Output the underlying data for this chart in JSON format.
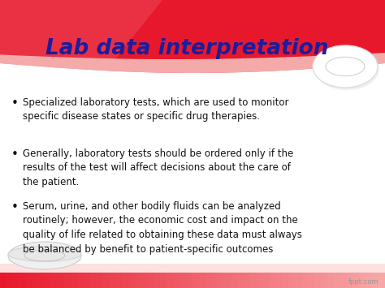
{
  "title": "Lab data interpretation",
  "title_color": "#1c1c9c",
  "title_fontsize": 19,
  "bg_color": "#ffffff",
  "header_red": "#e8182c",
  "header_pink": "#f08080",
  "bullet_points": [
    "Specialized laboratory tests, which are used to monitor\nspecific disease states or specific drug therapies.",
    "Generally, laboratory tests should be ordered only if the\nresults of the test will affect decisions about the care of\nthe patient.",
    "Serum, urine, and other bodily fluids can be analyzed\nroutinely; however, the economic cost and impact on the\nquality of life related to obtaining these data must always\nbe balanced by benefit to patient-specific outcomes"
  ],
  "bullet_color": "#111111",
  "bullet_fontsize": 8.5,
  "footer_text": "fppt.com",
  "footer_color": "#999999",
  "footer_fontsize": 6,
  "bottom_bar_color1": "#e8182c",
  "bottom_bar_color2": "#f5b0b0"
}
